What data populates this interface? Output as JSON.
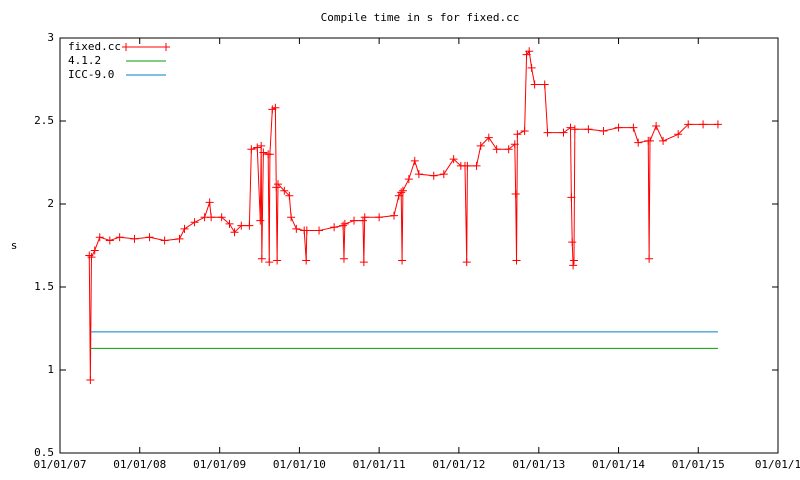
{
  "chart_data": {
    "type": "line",
    "title": "Compile time in s for fixed.cc",
    "ylabel": "s",
    "xlim": [
      "2007-01-01",
      "2016-01-01"
    ],
    "xticks": [
      {
        "value": "2007-01-01",
        "label": "01/01/07"
      },
      {
        "value": "2008-01-01",
        "label": "01/01/08"
      },
      {
        "value": "2009-01-01",
        "label": "01/01/09"
      },
      {
        "value": "2010-01-01",
        "label": "01/01/10"
      },
      {
        "value": "2011-01-01",
        "label": "01/01/11"
      },
      {
        "value": "2012-01-01",
        "label": "01/01/12"
      },
      {
        "value": "2013-01-01",
        "label": "01/01/13"
      },
      {
        "value": "2014-01-01",
        "label": "01/01/14"
      },
      {
        "value": "2015-01-01",
        "label": "01/01/15"
      },
      {
        "value": "2016-01-01",
        "label": "01/01/1"
      }
    ],
    "ylim": [
      0.5,
      3
    ],
    "yticks": [
      0.5,
      1,
      1.5,
      2,
      2.5,
      3
    ],
    "legend": "top-left",
    "series": [
      {
        "name": "fixed.cc",
        "color": "#ff0000",
        "markers": true,
        "x": [
          "2007-05-15",
          "2007-05-20",
          "2007-05-25",
          "2007-06-09",
          "2007-07-02",
          "2007-08-17",
          "2007-10-01",
          "2007-12-08",
          "2008-02-15",
          "2008-04-24",
          "2008-07-01",
          "2008-07-24",
          "2008-09-08",
          "2008-10-24",
          "2008-11-16",
          "2008-11-23",
          "2009-01-10",
          "2009-02-15",
          "2009-03-10",
          "2009-04-10",
          "2009-05-17",
          "2009-05-26",
          "2009-06-22",
          "2009-07-06",
          "2009-07-10",
          "2009-07-13",
          "2009-07-20",
          "2009-08-11",
          "2009-08-16",
          "2009-08-19",
          "2009-08-30",
          "2009-09-13",
          "2009-09-17",
          "2009-09-21",
          "2009-09-25",
          "2009-10-24",
          "2009-11-16",
          "2009-11-24",
          "2009-12-18",
          "2010-01-23",
          "2010-02-01",
          "2010-02-04",
          "2010-04-01",
          "2010-06-09",
          "2010-07-20",
          "2010-07-24",
          "2010-07-28",
          "2010-09-08",
          "2010-10-19",
          "2010-10-23",
          "2010-10-27",
          "2011-01-01",
          "2011-03-10",
          "2011-04-01",
          "2011-04-12",
          "2011-04-16",
          "2011-04-20",
          "2011-05-17",
          "2011-06-13",
          "2011-07-02",
          "2011-09-08",
          "2011-10-24",
          "2011-12-08",
          "2012-01-10",
          "2012-01-29",
          "2012-02-06",
          "2012-02-09",
          "2012-03-22",
          "2012-04-10",
          "2012-05-17",
          "2012-06-22",
          "2012-08-16",
          "2012-09-13",
          "2012-09-17",
          "2012-09-21",
          "2012-09-25",
          "2012-10-28",
          "2012-11-06",
          "2012-11-18",
          "2012-11-29",
          "2012-12-13",
          "2013-01-28",
          "2013-02-10",
          "2013-04-24",
          "2013-05-26",
          "2013-05-30",
          "2013-06-03",
          "2013-06-07",
          "2013-06-11",
          "2013-06-15",
          "2013-08-16",
          "2013-10-24",
          "2014-01-01",
          "2014-03-10",
          "2014-04-01",
          "2014-05-17",
          "2014-05-21",
          "2014-05-25",
          "2014-06-22",
          "2014-07-24",
          "2014-10-01",
          "2014-11-16",
          "2015-01-23",
          "2015-04-01"
        ],
        "values": [
          1.69,
          0.94,
          1.68,
          1.72,
          1.8,
          1.78,
          1.8,
          1.79,
          1.8,
          1.78,
          1.79,
          1.85,
          1.89,
          1.92,
          2.01,
          1.92,
          1.92,
          1.88,
          1.83,
          1.87,
          1.87,
          2.33,
          2.34,
          1.9,
          2.35,
          1.67,
          2.31,
          2.3,
          1.65,
          2.3,
          2.57,
          2.58,
          2.1,
          1.66,
          2.12,
          2.08,
          2.05,
          1.92,
          1.85,
          1.84,
          1.66,
          1.84,
          1.84,
          1.86,
          1.87,
          1.67,
          1.88,
          1.9,
          1.9,
          1.65,
          1.92,
          1.92,
          1.93,
          2.05,
          2.07,
          1.66,
          2.08,
          2.15,
          2.26,
          2.18,
          2.17,
          2.18,
          2.27,
          2.23,
          2.23,
          1.65,
          2.23,
          2.23,
          2.35,
          2.4,
          2.33,
          2.33,
          2.36,
          2.06,
          1.66,
          2.42,
          2.44,
          2.9,
          2.92,
          2.82,
          2.72,
          2.72,
          2.43,
          2.43,
          2.46,
          2.04,
          1.77,
          1.63,
          1.66,
          2.45,
          2.45,
          2.44,
          2.46,
          2.46,
          2.37,
          2.38,
          1.67,
          2.38,
          2.47,
          2.38,
          2.42,
          2.48,
          2.48,
          2.48
        ]
      },
      {
        "name": "4.1.2",
        "color": "#00a000",
        "markers": false,
        "x": [
          "2007-05-20",
          "2015-04-01"
        ],
        "values": [
          1.13,
          1.13
        ]
      },
      {
        "name": "ICC-9.0",
        "color": "#0080c0",
        "markers": false,
        "x": [
          "2007-05-20",
          "2015-04-01"
        ],
        "values": [
          1.23,
          1.23
        ]
      }
    ]
  }
}
